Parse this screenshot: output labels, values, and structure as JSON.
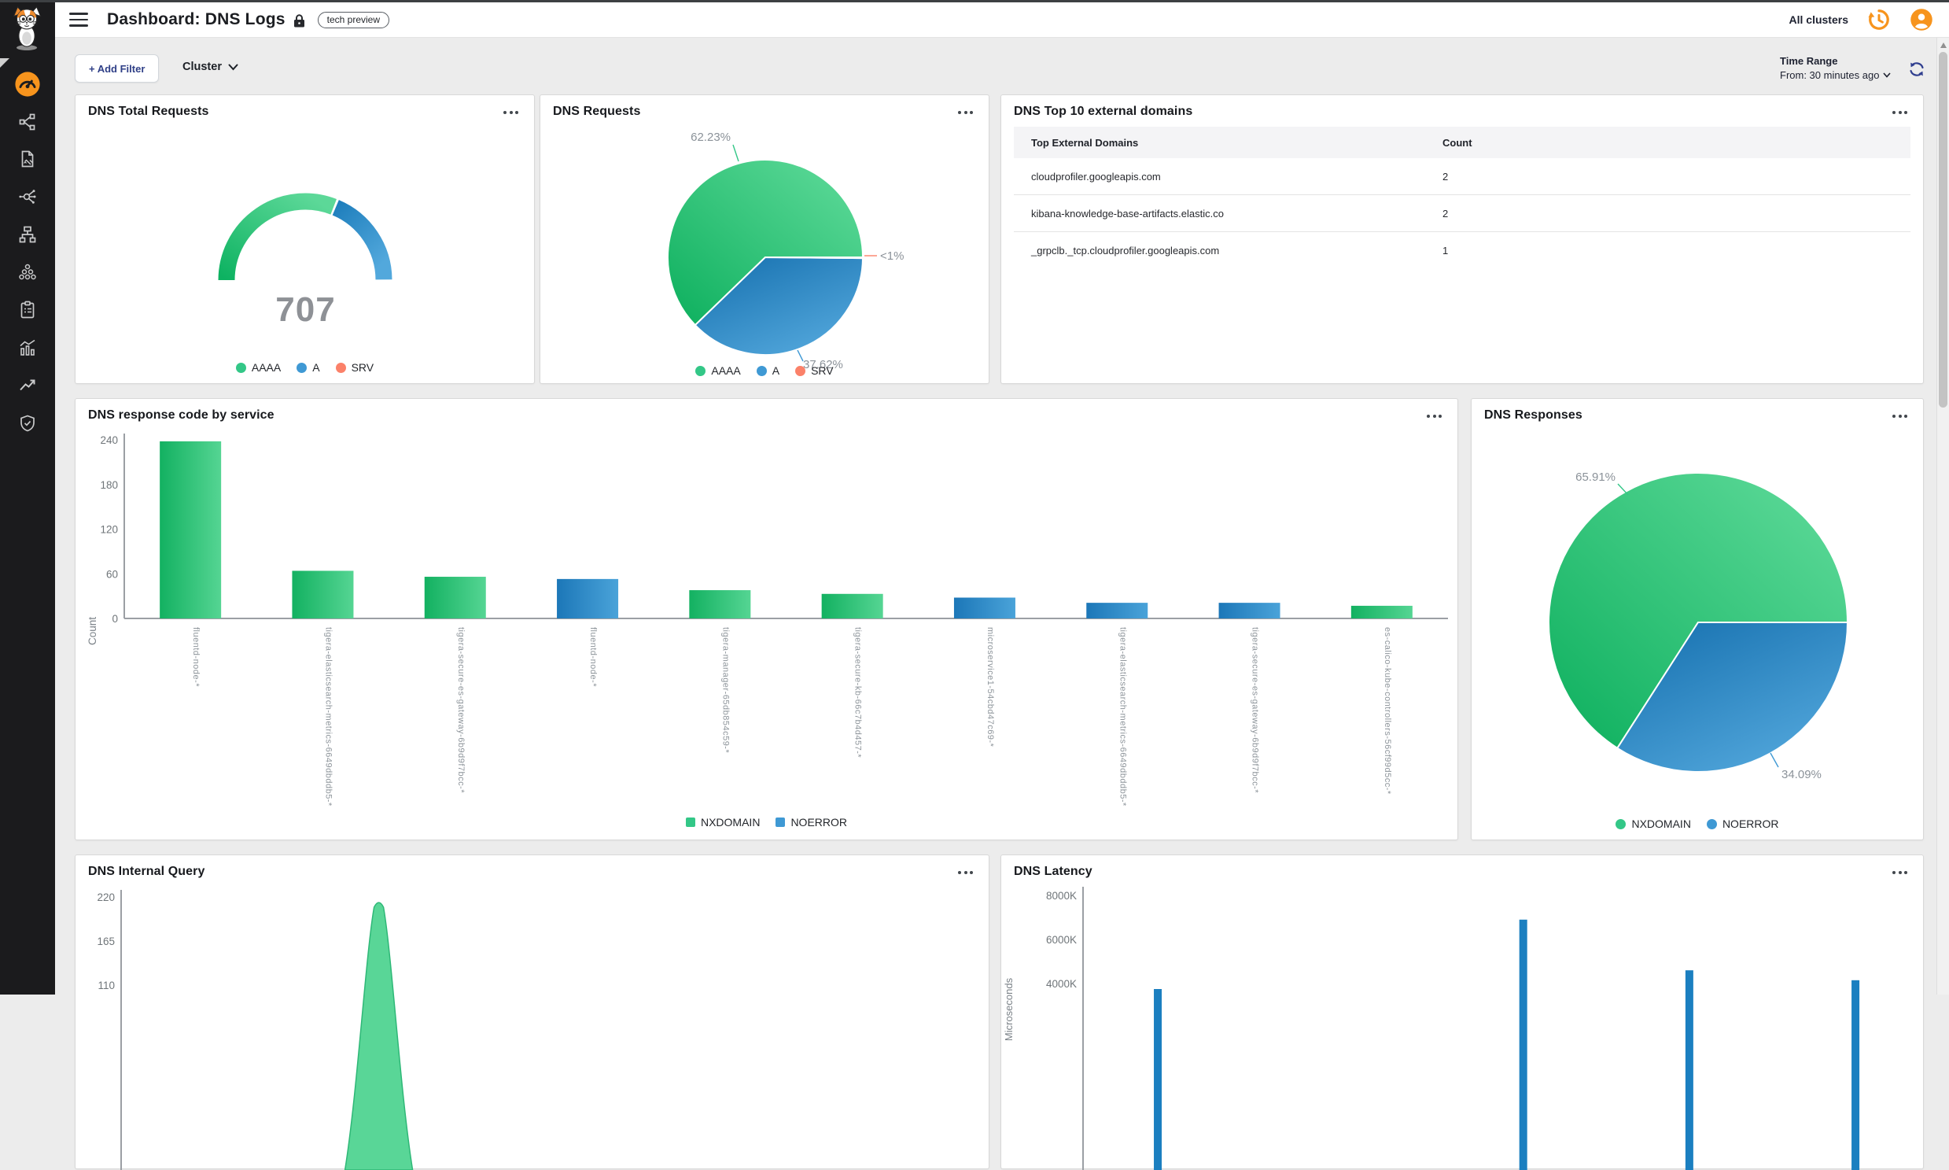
{
  "topbar": {
    "title": "Dashboard: DNS Logs",
    "badge": "tech preview",
    "all_clusters": "All clusters"
  },
  "sidebar": {
    "items": [
      "dashboard",
      "service-graph",
      "policies",
      "endpoints",
      "network",
      "clusters",
      "compliance",
      "statistics",
      "trends",
      "security"
    ]
  },
  "filter_bar": {
    "add_filter_label": "+ Add Filter",
    "cluster_label": "Cluster"
  },
  "time_range": {
    "label": "Time Range",
    "value": "From: 30 minutes ago"
  },
  "panels": {
    "total_requests": {
      "title": "DNS Total Requests",
      "value": "707"
    },
    "requests": {
      "title": "DNS Requests"
    },
    "top_domains": {
      "title": "DNS Top 10 external domains"
    },
    "response_code": {
      "title": "DNS response code by service"
    },
    "responses": {
      "title": "DNS Responses"
    },
    "internal_query": {
      "title": "DNS Internal Query"
    },
    "latency": {
      "title": "DNS Latency"
    }
  },
  "colors": {
    "green": "#12b76a",
    "green_light": "#5cd898",
    "blue": "#1b7fc2",
    "blue_light": "#52a8dc",
    "salmon": "#fb8069",
    "orange": "#f7941d",
    "legend_green": "#33c787",
    "legend_blue": "#3f99d4",
    "legend_salmon": "#fb8169"
  },
  "chart_data": [
    {
      "id": "total_requests_gauge",
      "type": "gauge",
      "title": "DNS Total Requests",
      "value": 707,
      "segments": [
        {
          "label": "AAAA",
          "pct": 62.23,
          "color": "green"
        },
        {
          "label": "A",
          "pct": 37.62,
          "color": "blue"
        },
        {
          "label": "SRV",
          "pct": 0.15,
          "color": "salmon"
        }
      ],
      "legend": [
        {
          "label": "AAAA",
          "color": "green"
        },
        {
          "label": "A",
          "color": "blue"
        },
        {
          "label": "SRV",
          "color": "salmon"
        }
      ]
    },
    {
      "id": "requests_pie",
      "type": "pie",
      "title": "DNS Requests",
      "slices": [
        {
          "label": "AAAA",
          "pct": 62.23,
          "display": "62.23%",
          "color": "green"
        },
        {
          "label": "A",
          "pct": 37.62,
          "display": "37.62%",
          "color": "blue"
        },
        {
          "label": "SRV",
          "pct": 0.15,
          "display": "<1%",
          "color": "salmon"
        }
      ],
      "legend": [
        {
          "label": "AAAA",
          "color": "green"
        },
        {
          "label": "A",
          "color": "blue"
        },
        {
          "label": "SRV",
          "color": "salmon"
        }
      ]
    },
    {
      "id": "top_domains_table",
      "type": "table",
      "title": "DNS Top 10 external domains",
      "columns": [
        "Top External Domains",
        "Count"
      ],
      "rows": [
        [
          "cloudprofiler.googleapis.com",
          "2"
        ],
        [
          "kibana-knowledge-base-artifacts.elastic.co",
          "2"
        ],
        [
          "_grpclb._tcp.cloudprofiler.googleapis.com",
          "1"
        ]
      ]
    },
    {
      "id": "response_code_bar",
      "type": "bar",
      "title": "DNS response code by service",
      "ylabel": "Count",
      "ylim": [
        0,
        240
      ],
      "yticks": [
        240,
        180,
        120,
        60,
        0
      ],
      "legend": [
        {
          "label": "NXDOMAIN",
          "color": "green"
        },
        {
          "label": "NOERROR",
          "color": "blue"
        }
      ],
      "bars": [
        {
          "category": "fluentd-node-*",
          "series": "NXDOMAIN",
          "value": 238
        },
        {
          "category": "tigera-elasticsearch-metrics-6649dbddb5-*",
          "series": "NXDOMAIN",
          "value": 64
        },
        {
          "category": "tigera-secure-es-gateway-6b9d9f7bcc-*",
          "series": "NXDOMAIN",
          "value": 56
        },
        {
          "category": "fluentd-node-*",
          "series": "NOERROR",
          "value": 53
        },
        {
          "category": "tigera-manager-65db854c59-*",
          "series": "NXDOMAIN",
          "value": 38
        },
        {
          "category": "tigera-secure-kb-66c7b4d457-*",
          "series": "NXDOMAIN",
          "value": 33
        },
        {
          "category": "microservice1-54cbd47c69-*",
          "series": "NOERROR",
          "value": 28
        },
        {
          "category": "tigera-elasticsearch-metrics-6649dbddb5-*",
          "series": "NOERROR",
          "value": 21
        },
        {
          "category": "tigera-secure-es-gateway-6b9d9f7bcc-*",
          "series": "NOERROR",
          "value": 21
        },
        {
          "category": "es-calico-kube-controllers-56cf99d5cc-*",
          "series": "NXDOMAIN",
          "value": 17
        }
      ]
    },
    {
      "id": "responses_pie",
      "type": "pie",
      "title": "DNS Responses",
      "slices": [
        {
          "label": "NXDOMAIN",
          "pct": 65.91,
          "display": "65.91%",
          "color": "green"
        },
        {
          "label": "NOERROR",
          "pct": 34.09,
          "display": "34.09%",
          "color": "blue"
        }
      ],
      "legend": [
        {
          "label": "NXDOMAIN",
          "color": "green"
        },
        {
          "label": "NOERROR",
          "color": "blue"
        }
      ]
    },
    {
      "id": "internal_query_area",
      "type": "area",
      "title": "DNS Internal Query",
      "yticks": [
        "220",
        "165",
        "110"
      ],
      "peak_value": 215,
      "peak_x_frac": 0.3,
      "series_color": "green"
    },
    {
      "id": "latency_bar",
      "type": "bar",
      "title": "DNS Latency",
      "ylabel": "Microseconds",
      "yticks": [
        "8000K",
        "6000K",
        "4000K"
      ],
      "bars": [
        {
          "x_frac": 0.09,
          "value": 3750
        },
        {
          "x_frac": 0.53,
          "value": 6900
        },
        {
          "x_frac": 0.73,
          "value": 4600
        },
        {
          "x_frac": 0.93,
          "value": 4150
        }
      ]
    }
  ]
}
